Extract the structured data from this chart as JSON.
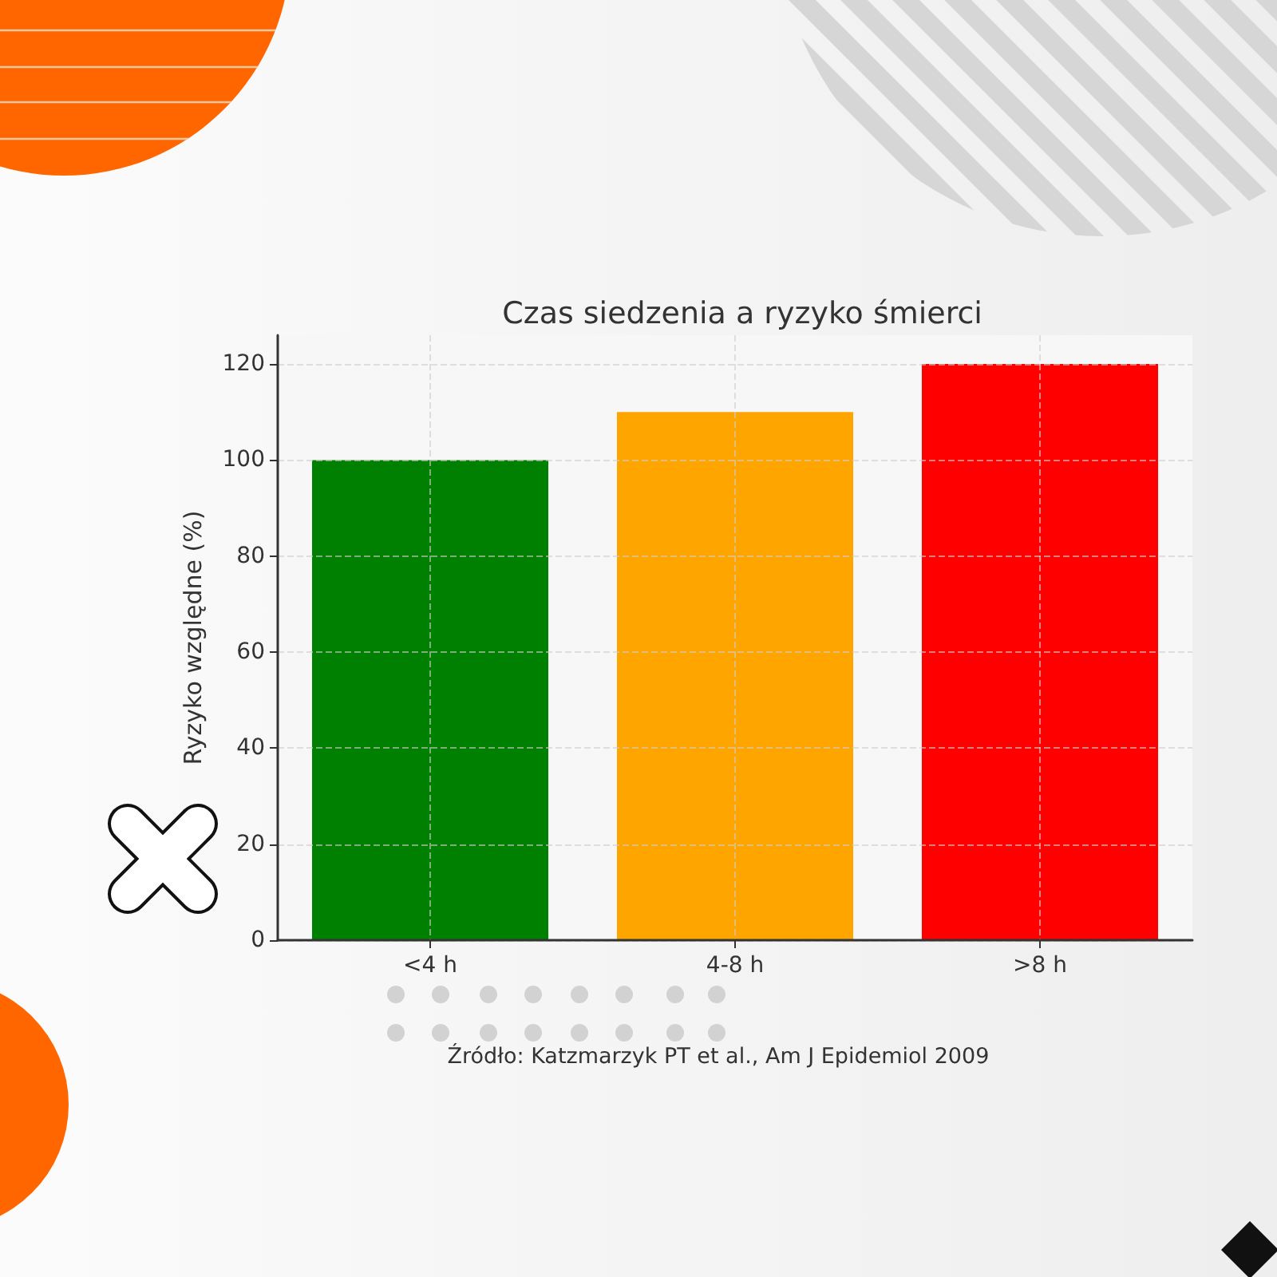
{
  "chart_data": {
    "type": "bar",
    "title": "Czas siedzenia a ryzyko śmierci",
    "ylabel": "Ryzyko względne (%)",
    "categories": [
      "<4 h",
      "4-8 h",
      ">8 h"
    ],
    "values": [
      100,
      110,
      120
    ],
    "colors": [
      "#008000",
      "#ffa500",
      "#ff0000"
    ],
    "ylim": [
      0,
      126
    ],
    "yticks": [
      0,
      20,
      40,
      60,
      80,
      100,
      120
    ],
    "grid": true,
    "annotations": [
      "Źródło: Katzmarzyk PT et al., Am J Epidemiol 2009"
    ]
  }
}
